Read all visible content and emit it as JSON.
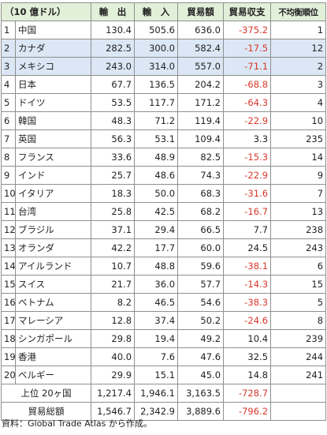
{
  "header": {
    "unit": "（10 億ドル）",
    "exports": "輸　出",
    "imports": "輸　入",
    "trade_volume": "貿易額",
    "trade_balance": "貿易収支",
    "imbalance_rank": "不均衡順位"
  },
  "rows": [
    {
      "rank": "1",
      "country": "中国",
      "exports": "130.4",
      "imports": "505.6",
      "total": "636.0",
      "balance": "-375.2",
      "imbalance": "1",
      "highlight": false
    },
    {
      "rank": "2",
      "country": "カナダ",
      "exports": "282.5",
      "imports": "300.0",
      "total": "582.4",
      "balance": "-17.5",
      "imbalance": "12",
      "highlight": true
    },
    {
      "rank": "3",
      "country": "メキシコ",
      "exports": "243.0",
      "imports": "314.0",
      "total": "557.0",
      "balance": "-71.1",
      "imbalance": "2",
      "highlight": true
    },
    {
      "rank": "4",
      "country": "日本",
      "exports": "67.7",
      "imports": "136.5",
      "total": "204.2",
      "balance": "-68.8",
      "imbalance": "3",
      "highlight": false
    },
    {
      "rank": "5",
      "country": "ドイツ",
      "exports": "53.5",
      "imports": "117.7",
      "total": "171.2",
      "balance": "-64.3",
      "imbalance": "4",
      "highlight": false
    },
    {
      "rank": "6",
      "country": "韓国",
      "exports": "48.3",
      "imports": "71.2",
      "total": "119.4",
      "balance": "-22.9",
      "imbalance": "10",
      "highlight": false
    },
    {
      "rank": "7",
      "country": "英国",
      "exports": "56.3",
      "imports": "53.1",
      "total": "109.4",
      "balance": "3.3",
      "imbalance": "235",
      "highlight": false
    },
    {
      "rank": "8",
      "country": "フランス",
      "exports": "33.6",
      "imports": "48.9",
      "total": "82.5",
      "balance": "-15.3",
      "imbalance": "14",
      "highlight": false
    },
    {
      "rank": "9",
      "country": "インド",
      "exports": "25.7",
      "imports": "48.6",
      "total": "74.3",
      "balance": "-22.9",
      "imbalance": "9",
      "highlight": false
    },
    {
      "rank": "10",
      "country": "イタリア",
      "exports": "18.3",
      "imports": "50.0",
      "total": "68.3",
      "balance": "-31.6",
      "imbalance": "7",
      "highlight": false
    },
    {
      "rank": "11",
      "country": "台湾",
      "exports": "25.8",
      "imports": "42.5",
      "total": "68.2",
      "balance": "-16.7",
      "imbalance": "13",
      "highlight": false
    },
    {
      "rank": "12",
      "country": "ブラジル",
      "exports": "37.1",
      "imports": "29.4",
      "total": "66.5",
      "balance": "7.7",
      "imbalance": "238",
      "highlight": false
    },
    {
      "rank": "13",
      "country": "オランダ",
      "exports": "42.2",
      "imports": "17.7",
      "total": "60.0",
      "balance": "24.5",
      "imbalance": "243",
      "highlight": false
    },
    {
      "rank": "14",
      "country": "アイルランド",
      "exports": "10.7",
      "imports": "48.8",
      "total": "59.6",
      "balance": "-38.1",
      "imbalance": "6",
      "highlight": false
    },
    {
      "rank": "15",
      "country": "スイス",
      "exports": "21.7",
      "imports": "36.0",
      "total": "57.7",
      "balance": "-14.3",
      "imbalance": "15",
      "highlight": false
    },
    {
      "rank": "16",
      "country": "ベトナム",
      "exports": "8.2",
      "imports": "46.5",
      "total": "54.6",
      "balance": "-38.3",
      "imbalance": "5",
      "highlight": false
    },
    {
      "rank": "17",
      "country": "マレーシア",
      "exports": "12.8",
      "imports": "37.4",
      "total": "50.2",
      "balance": "-24.6",
      "imbalance": "8",
      "highlight": false
    },
    {
      "rank": "18",
      "country": "シンガポール",
      "exports": "29.8",
      "imports": "19.4",
      "total": "49.2",
      "balance": "10.4",
      "imbalance": "239",
      "highlight": false
    },
    {
      "rank": "19",
      "country": "香港",
      "exports": "40.0",
      "imports": "7.6",
      "total": "47.6",
      "balance": "32.5",
      "imbalance": "244",
      "highlight": false
    },
    {
      "rank": "20",
      "country": "ベルギー",
      "exports": "29.9",
      "imports": "15.1",
      "total": "45.0",
      "balance": "14.8",
      "imbalance": "241",
      "highlight": false
    }
  ],
  "totals": [
    {
      "label": "上位 20ヶ国",
      "exports": "1,217.4",
      "imports": "1,946.1",
      "total": "3,163.5",
      "balance": "-728.7"
    },
    {
      "label": "貿易総額",
      "exports": "1,546.7",
      "imports": "2,342.9",
      "total": "3,889.6",
      "balance": "-796.2"
    }
  ],
  "source_note": "資料：Global Trade Atlas から作成。",
  "colors": {
    "header_bg": "#e2efd9",
    "highlight_bg": "#dbe7f5",
    "negative": "#d9382b"
  }
}
